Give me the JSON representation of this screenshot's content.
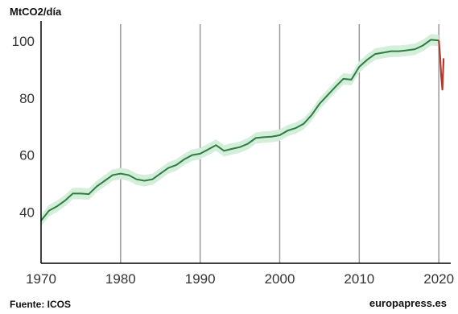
{
  "chart_data": {
    "type": "line",
    "title": "",
    "ylabel": "MtCO2/día",
    "xlabel": "",
    "xlim": [
      1970,
      2021.5
    ],
    "ylim": [
      22,
      106
    ],
    "y_ticks": [
      40,
      60,
      80,
      100
    ],
    "x_ticks": [
      1970,
      1980,
      1990,
      2000,
      2010,
      2020
    ],
    "grid": "vertical",
    "colors": {
      "line": "#2e7d43",
      "band": "#d3eed9",
      "recent": "#b03a2e",
      "grid": "#999999"
    },
    "series": [
      {
        "values_x": [
          1970,
          1971,
          1972,
          1973,
          1974,
          1975,
          1976,
          1977,
          1978,
          1979,
          1980,
          1981,
          1982,
          1983,
          1984,
          1985,
          1986,
          1987,
          1988,
          1989,
          1990,
          1991,
          1992,
          1993,
          1994,
          1995,
          1996,
          1997,
          1998,
          1999,
          2000,
          2001,
          2002,
          2003,
          2004,
          2005,
          2006,
          2007,
          2008,
          2009,
          2010,
          2011,
          2012,
          2013,
          2014,
          2015,
          2016,
          2017,
          2018,
          2019,
          2020
        ],
        "values_y": [
          37,
          40.5,
          42,
          44,
          46.5,
          46.5,
          46.3,
          49,
          51,
          53,
          53.5,
          53,
          51.5,
          51,
          51.5,
          53.5,
          55.5,
          56.5,
          58.5,
          60,
          60.5,
          62,
          63.5,
          61.5,
          62.2,
          62.8,
          64,
          66,
          66.3,
          66.5,
          67,
          68.6,
          69.5,
          71,
          74,
          78,
          81,
          84,
          86.8,
          86.5,
          91,
          93.5,
          95.5,
          96,
          96.5,
          96.5,
          96.8,
          97.2,
          98.5,
          100.5,
          100.3
        ],
        "band_halfwidth": 2
      },
      {
        "values_x": [
          2020.0,
          2020.15,
          2020.3,
          2020.45,
          2020.6
        ],
        "values_y": [
          100.3,
          95,
          88,
          83,
          94
        ]
      }
    ]
  },
  "footer": {
    "source": "Fuente: ICOS",
    "brand": "europapress.es"
  }
}
